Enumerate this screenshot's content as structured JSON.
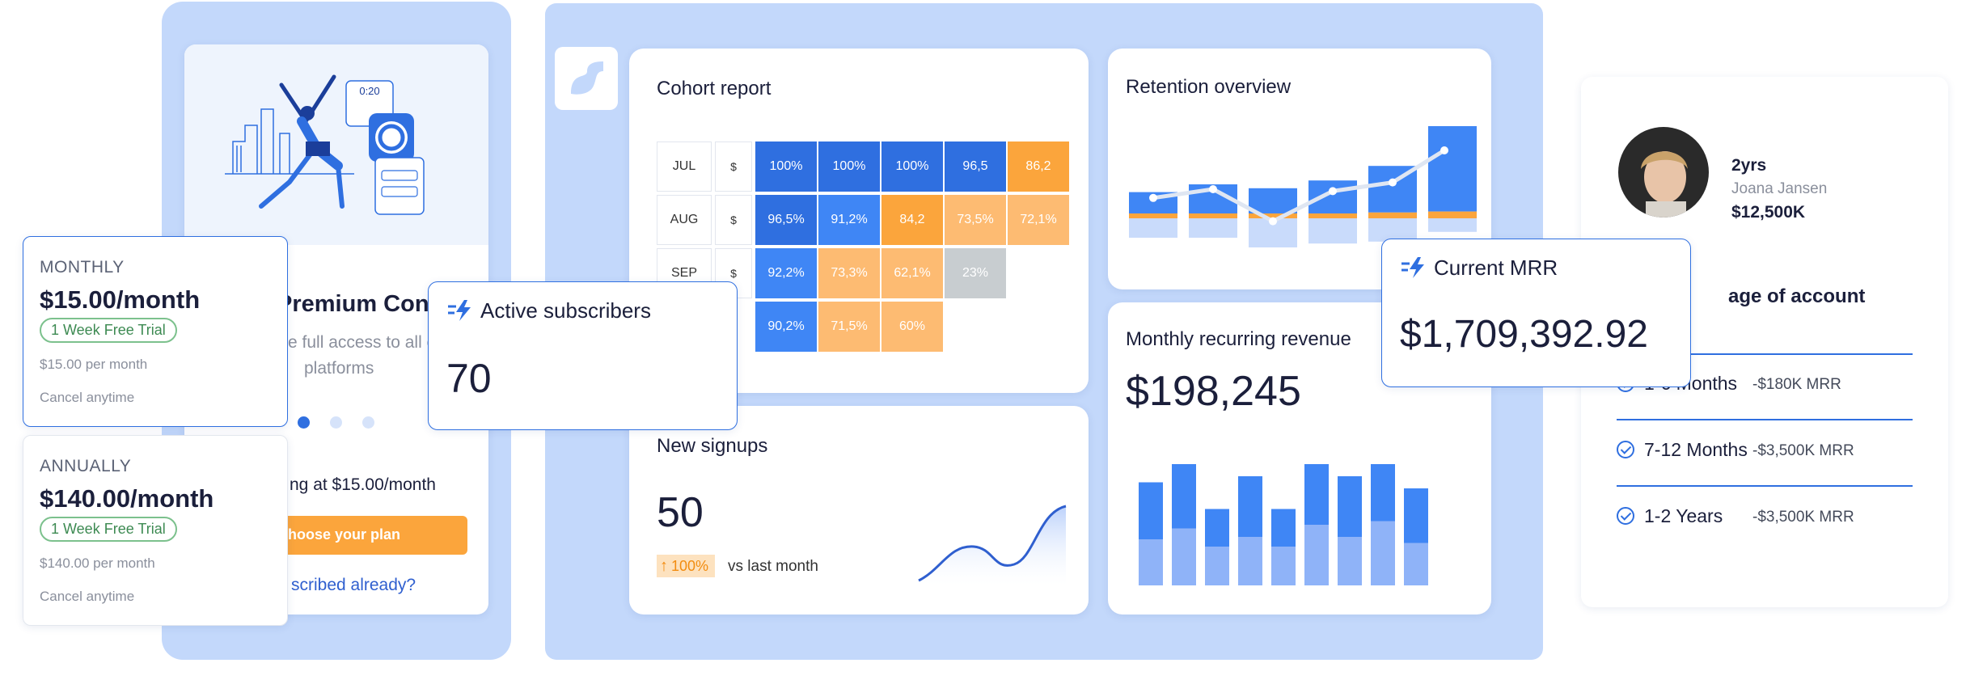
{
  "colors": {
    "blue": "#2f6fe0",
    "mid_blue": "#3f86f5",
    "light_blue": "#8fb3f8",
    "orange": "#fba53c",
    "light_orange": "#fdbb72",
    "gray": "#c8cdd0",
    "panel": "#c3d8fb"
  },
  "subscription": {
    "timer": "0:20",
    "heading": "Premium Con",
    "description_line1": "e full access to all c",
    "description_line2": "platforms",
    "starting": "ng at $15.00/month",
    "cta": "hoose your plan",
    "subscribed": "scribed already?"
  },
  "plans": [
    {
      "period": "MONTHLY",
      "price": "$15.00/month",
      "trial": "1 Week Free Trial",
      "per": "$15.00 per month",
      "cancel": "Cancel anytime"
    },
    {
      "period": "ANNUALLY",
      "price": "$140.00/month",
      "trial": "1 Week Free Trial",
      "per": "$140.00 per month",
      "cancel": "Cancel anytime"
    }
  ],
  "active_subscribers": {
    "title": "Active subscribers",
    "value": "70"
  },
  "cohort": {
    "title": "Cohort report",
    "rows": [
      {
        "label": "JUL",
        "currency": "$",
        "cells": [
          {
            "v": "100%",
            "c": "blue"
          },
          {
            "v": "100%",
            "c": "blue"
          },
          {
            "v": "100%",
            "c": "blue"
          },
          {
            "v": "96,5",
            "c": "blue"
          },
          {
            "v": "86,2",
            "c": "orange"
          }
        ]
      },
      {
        "label": "AUG",
        "currency": "$",
        "cells": [
          {
            "v": "96,5%",
            "c": "blue"
          },
          {
            "v": "91,2%",
            "c": "mid_blue"
          },
          {
            "v": "84,2",
            "c": "orange"
          },
          {
            "v": "73,5%",
            "c": "light_orange"
          },
          {
            "v": "72,1%",
            "c": "light_orange"
          }
        ]
      },
      {
        "label": "SEP",
        "currency": "$",
        "cells": [
          {
            "v": "92,2%",
            "c": "mid_blue"
          },
          {
            "v": "73,3%",
            "c": "light_orange"
          },
          {
            "v": "62,1%",
            "c": "light_orange"
          },
          {
            "v": "23%",
            "c": "gray"
          }
        ]
      },
      {
        "label": "",
        "currency": "",
        "cells": [
          {
            "v": "90,2%",
            "c": "mid_blue"
          },
          {
            "v": "71,5%",
            "c": "light_orange"
          },
          {
            "v": "60%",
            "c": "light_orange"
          }
        ]
      }
    ]
  },
  "new_signups": {
    "title": "New signups",
    "value": "50",
    "change": "100%",
    "change_label": "vs last month"
  },
  "retention": {
    "title": "Retention overview",
    "bars": [
      {
        "top": 0.22,
        "orange": 0.05,
        "bottom": 0.2
      },
      {
        "top": 0.3,
        "orange": 0.05,
        "bottom": 0.2
      },
      {
        "top": 0.26,
        "orange": 0.05,
        "bottom": 0.3
      },
      {
        "top": 0.34,
        "orange": 0.05,
        "bottom": 0.26
      },
      {
        "top": 0.48,
        "orange": 0.06,
        "bottom": 0.24
      },
      {
        "top": 0.88,
        "orange": 0.07,
        "bottom": 0.14
      }
    ],
    "line": [
      0.46,
      0.55,
      0.22,
      0.53,
      0.62,
      0.95
    ]
  },
  "mrr": {
    "title": "Monthly recurring revenue",
    "value": "$198,245",
    "bars": [
      {
        "total": 0.85,
        "lower": 0.38
      },
      {
        "total": 1.0,
        "lower": 0.47
      },
      {
        "total": 0.63,
        "lower": 0.32
      },
      {
        "total": 0.9,
        "lower": 0.4
      },
      {
        "total": 0.63,
        "lower": 0.32
      },
      {
        "total": 1.0,
        "lower": 0.5
      },
      {
        "total": 0.9,
        "lower": 0.4
      },
      {
        "total": 1.0,
        "lower": 0.53
      },
      {
        "total": 0.8,
        "lower": 0.35
      }
    ]
  },
  "current_mrr": {
    "title": "Current MRR",
    "value": "$1,709,392.92"
  },
  "account": {
    "tenure": "2yrs",
    "name": "Joana Jansen",
    "amount": "$12,500K",
    "section_title": "age of account",
    "rows": [
      {
        "label": "1-6 Months",
        "value": "-$180K MRR"
      },
      {
        "label": "7-12 Months",
        "value": "-$3,500K MRR"
      },
      {
        "label": "1-2 Years",
        "value": "-$3,500K MRR"
      }
    ]
  }
}
